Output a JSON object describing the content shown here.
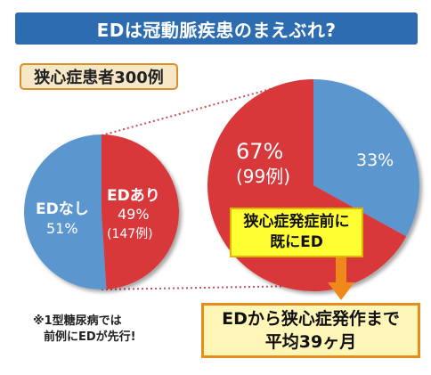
{
  "banner": {
    "title": "EDは冠動脈疾患のまえぶれ?"
  },
  "sample": {
    "label": "狭心症患者300例"
  },
  "chart_data": [
    {
      "type": "pie",
      "slices": [
        {
          "label": "EDなし",
          "value": 51,
          "percent_label": "51%",
          "color": "#5b96cf"
        },
        {
          "label": "EDあり",
          "value": 49,
          "percent_label": "49%",
          "count_label": "(147例)",
          "color": "#d9383a"
        }
      ]
    },
    {
      "type": "pie",
      "slices": [
        {
          "label": "",
          "value": 67,
          "percent_label": "67%",
          "count_label": "(99例)",
          "color": "#d9383a"
        },
        {
          "label": "",
          "value": 33,
          "percent_label": "33%",
          "color": "#5b96cf"
        }
      ]
    }
  ],
  "callouts": {
    "yellow": {
      "line1": "狭心症発症前に",
      "line2": "既にED"
    },
    "orange": {
      "line1": "EDから狭心症発作まで",
      "line2": "平均39ヶ月"
    }
  },
  "footnote": {
    "line1": "※1型糖尿病では",
    "line2": "前例にEDが先行!"
  },
  "colors": {
    "blue": "#5b96cf",
    "red": "#d9383a",
    "banner": "#2d6cb0",
    "arrow": "#ef8a1a"
  }
}
